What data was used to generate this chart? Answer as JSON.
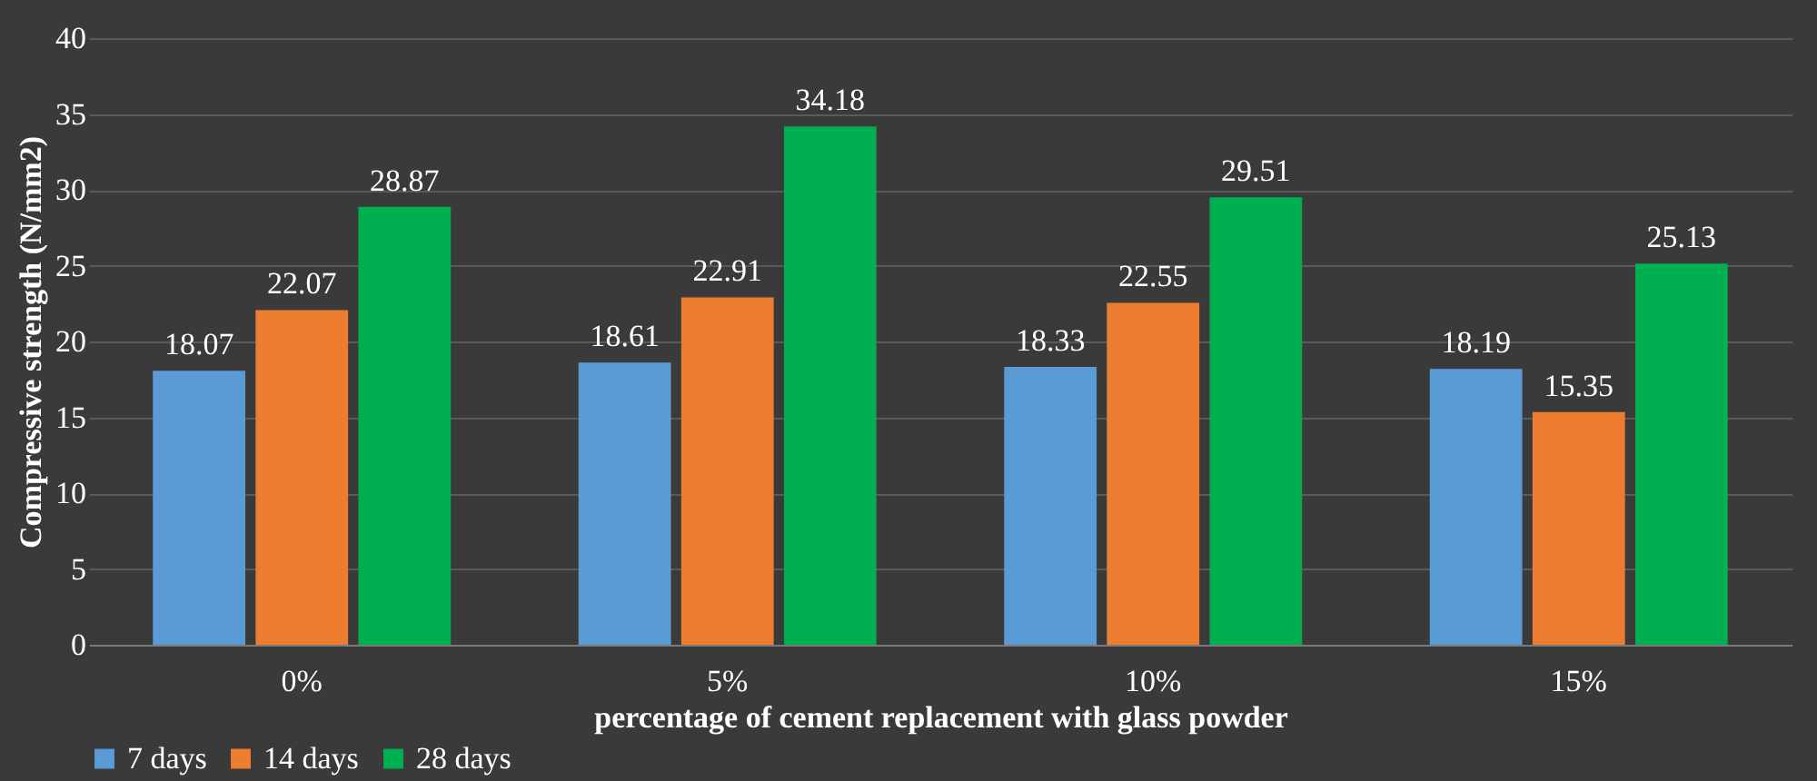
{
  "chart_data": {
    "type": "bar",
    "xlabel": "percentage of cement replacement with glass powder",
    "ylabel": "Compressive strength (N/mm2)",
    "categories": [
      "0%",
      "5%",
      "10%",
      "15%"
    ],
    "series": [
      {
        "name": "7 days",
        "color": "#5b9bd5",
        "values": [
          18.07,
          18.61,
          18.33,
          18.19
        ]
      },
      {
        "name": "14 days",
        "color": "#ed7d31",
        "values": [
          22.07,
          22.91,
          22.55,
          15.35
        ]
      },
      {
        "name": "28 days",
        "color": "#00b050",
        "values": [
          28.87,
          34.18,
          29.51,
          25.13
        ]
      }
    ],
    "ylim": [
      0,
      40
    ],
    "yticks": [
      0,
      5,
      10,
      15,
      20,
      25,
      30,
      35,
      40
    ],
    "grid": "y",
    "legend": "bottom",
    "data_labels": true
  }
}
